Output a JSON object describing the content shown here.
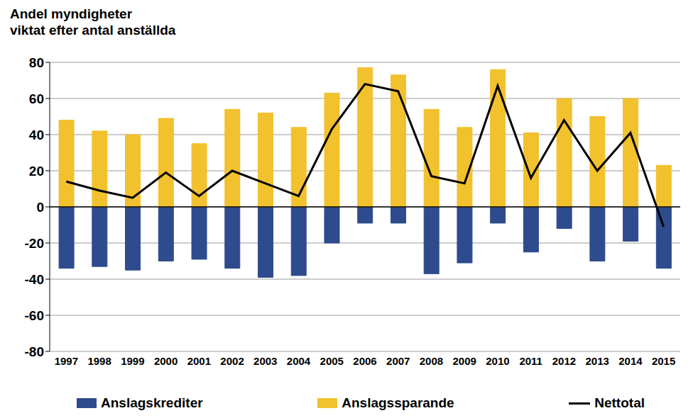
{
  "chart_data": {
    "type": "bar",
    "title": "Andel myndigheter\nviktat efter antal anställda",
    "categories": [
      "1997",
      "1998",
      "1999",
      "2000",
      "2001",
      "2002",
      "2003",
      "2004",
      "2005",
      "2006",
      "2007",
      "2008",
      "2009",
      "2010",
      "2011",
      "2012",
      "2013",
      "2014",
      "2015"
    ],
    "series": [
      {
        "name": "Anslagskrediter",
        "type": "bar",
        "color": "#2E4B8E",
        "values": [
          -34,
          -33,
          -35,
          -30,
          -29,
          -34,
          -39,
          -38,
          -20,
          -9,
          -9,
          -37,
          -31,
          -9,
          -25,
          -12,
          -30,
          -19,
          -34
        ]
      },
      {
        "name": "Anslagssparande",
        "type": "bar",
        "color": "#F2C12E",
        "values": [
          48,
          42,
          40,
          49,
          35,
          54,
          52,
          44,
          63,
          77,
          73,
          54,
          44,
          76,
          41,
          60,
          50,
          60,
          23
        ]
      },
      {
        "name": "Nettotal",
        "type": "line",
        "color": "#000000",
        "values": [
          14,
          9,
          5,
          19,
          6,
          20,
          13,
          6,
          43,
          68,
          64,
          17,
          13,
          67,
          16,
          48,
          20,
          41,
          -11
        ]
      }
    ],
    "ylim": [
      -80,
      80
    ],
    "yticks": [
      -80,
      -60,
      -40,
      -20,
      0,
      20,
      40,
      60,
      80
    ],
    "grid": true,
    "stacked": true
  }
}
